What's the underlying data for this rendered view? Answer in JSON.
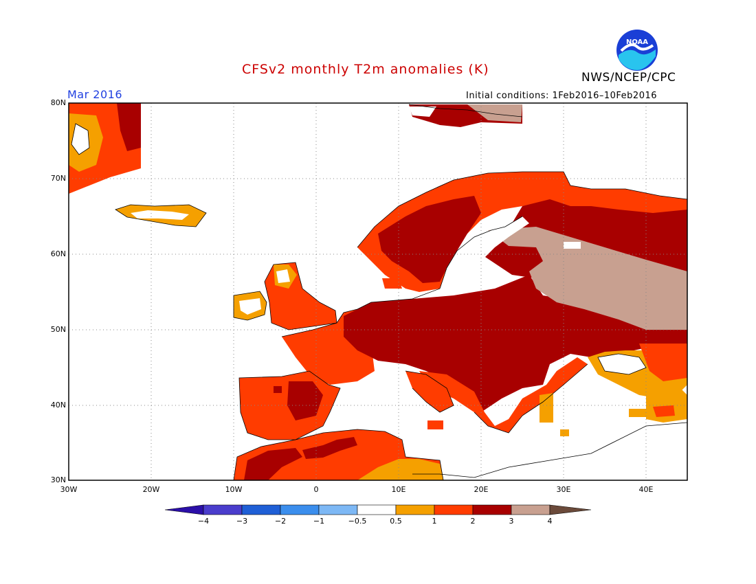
{
  "header": {
    "title": "CFSv2 monthly T2m anomalies (K)",
    "agency": "NWS/NCEP/CPC",
    "month": "Mar 2016",
    "initial_conditions": "Initial conditions: 1Feb2016–10Feb2016",
    "logo_text": "NOAA"
  },
  "map": {
    "region": "Europe",
    "lat_labels": [
      "80N",
      "70N",
      "60N",
      "50N",
      "40N",
      "30N"
    ],
    "lon_labels": [
      "30W",
      "20W",
      "10W",
      "0",
      "10E",
      "20E",
      "30E",
      "40E"
    ]
  },
  "colorbar": {
    "labels": [
      "−4",
      "−3",
      "−2",
      "−1",
      "−0.5",
      "0.5",
      "1",
      "2",
      "3",
      "4"
    ],
    "colors": [
      "#2b0fa8",
      "#4a3dcc",
      "#1f5fd6",
      "#3b8eed",
      "#7db8f5",
      "#ffffff",
      "#f5a000",
      "#ff3c00",
      "#a80000",
      "#c8a090",
      "#6b4a3a"
    ]
  }
}
